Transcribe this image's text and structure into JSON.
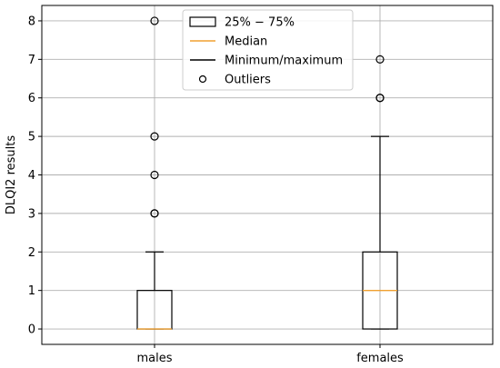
{
  "chart_data": {
    "type": "box",
    "ylabel": "DLQI2 results",
    "ylim": [
      -0.4,
      8.4
    ],
    "yticks": [
      0,
      1,
      2,
      3,
      4,
      5,
      6,
      7,
      8
    ],
    "grid": true,
    "legend_position": "top-center",
    "categories": [
      "males",
      "females"
    ],
    "boxes": [
      {
        "category": "males",
        "whisker_low": 0,
        "q1": 0,
        "median": 0,
        "q3": 1,
        "whisker_high": 2,
        "outliers": [
          3,
          3,
          4,
          5,
          8
        ]
      },
      {
        "category": "females",
        "whisker_low": 0,
        "q1": 0,
        "median": 1,
        "q3": 2,
        "whisker_high": 5,
        "outliers": [
          6,
          6,
          7
        ]
      }
    ],
    "legend": [
      {
        "label": "25% − 75%",
        "symbol": "box"
      },
      {
        "label": "Median",
        "symbol": "median-line"
      },
      {
        "label": "Minimum/maximum",
        "symbol": "whisker-line"
      },
      {
        "label": "Outliers",
        "symbol": "circle"
      }
    ],
    "colors": {
      "box": "#000000",
      "median": "#f0a030",
      "whisker": "#000000",
      "grid": "#b0b0b0"
    }
  }
}
